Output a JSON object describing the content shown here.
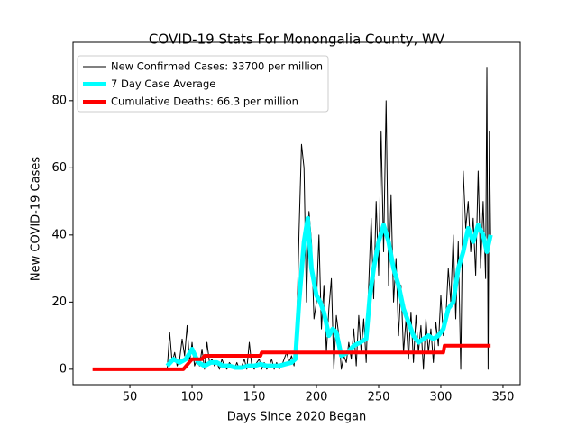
{
  "chart_data": {
    "type": "line",
    "title": "COVID-19 Stats For Monongalia County, WV",
    "x_label": "Days Since 2020 Began",
    "y_label": "New COVID-19 Cases",
    "xlim": [
      4.3,
      363.8
    ],
    "ylim": [
      -4.6,
      97.4
    ],
    "xticks": [
      50,
      100,
      150,
      200,
      250,
      300,
      350
    ],
    "yticks": [
      0,
      20,
      40,
      60,
      80
    ],
    "legend": "upper left",
    "series": [
      {
        "name": "New Confirmed Cases: 33700 per million",
        "color": "#000000",
        "width": 1,
        "x": [
          80,
          82,
          84,
          86,
          88,
          90,
          92,
          94,
          96,
          98,
          100,
          102,
          104,
          106,
          108,
          110,
          112,
          114,
          116,
          118,
          120,
          122,
          124,
          126,
          128,
          130,
          132,
          134,
          136,
          138,
          140,
          142,
          144,
          146,
          148,
          150,
          152,
          154,
          156,
          158,
          160,
          162,
          164,
          166,
          168,
          170,
          172,
          174,
          176,
          178,
          180,
          182,
          184,
          186,
          188,
          190,
          192,
          194,
          196,
          198,
          200,
          202,
          204,
          206,
          208,
          210,
          212,
          214,
          216,
          218,
          220,
          222,
          224,
          226,
          228,
          230,
          232,
          234,
          236,
          238,
          240,
          242,
          244,
          246,
          248,
          250,
          252,
          254,
          256,
          258,
          260,
          262,
          264,
          266,
          268,
          270,
          272,
          274,
          276,
          278,
          280,
          282,
          284,
          286,
          288,
          290,
          292,
          294,
          296,
          298,
          300,
          302,
          304,
          306,
          308,
          310,
          312,
          314,
          316,
          318,
          320,
          322,
          324,
          326,
          328,
          330,
          332,
          334,
          336,
          337,
          338,
          339,
          340
        ],
        "values": [
          0,
          11,
          2,
          5,
          1,
          3,
          9,
          4,
          13,
          2,
          8,
          1,
          3,
          1,
          6,
          0,
          8,
          2,
          3,
          1,
          2,
          0,
          3,
          1,
          0,
          2,
          1,
          0,
          2,
          0,
          1,
          3,
          0,
          8,
          1,
          0,
          2,
          3,
          0,
          2,
          0,
          1,
          3,
          0,
          2,
          0,
          1,
          3,
          5,
          2,
          4,
          1,
          10,
          41,
          67,
          60,
          20,
          47,
          38,
          15,
          20,
          40,
          12,
          25,
          5,
          18,
          27,
          0,
          16,
          10,
          0,
          4,
          2,
          8,
          3,
          12,
          1,
          16,
          5,
          15,
          2,
          25,
          45,
          21,
          50,
          28,
          71,
          35,
          80,
          25,
          52,
          20,
          33,
          10,
          25,
          5,
          15,
          3,
          17,
          2,
          16,
          5,
          13,
          0,
          15,
          5,
          12,
          2,
          14,
          7,
          22,
          10,
          15,
          30,
          20,
          40,
          15,
          38,
          0,
          59,
          42,
          50,
          35,
          45,
          28,
          59,
          30,
          50,
          27,
          90,
          0,
          71,
          40
        ]
      },
      {
        "name": "7 Day Case Average",
        "color": "#00ffff",
        "width": 5,
        "x": [
          80,
          85,
          90,
          95,
          100,
          105,
          110,
          115,
          120,
          125,
          130,
          135,
          140,
          145,
          150,
          155,
          160,
          165,
          170,
          175,
          180,
          183,
          186,
          190,
          193,
          196,
          200,
          203,
          206,
          210,
          213,
          216,
          220,
          225,
          230,
          235,
          240,
          243,
          246,
          250,
          254,
          258,
          262,
          266,
          270,
          274,
          278,
          282,
          286,
          290,
          294,
          298,
          302,
          306,
          310,
          314,
          318,
          322,
          326,
          330,
          334,
          337,
          340
        ],
        "values": [
          1,
          3,
          2,
          3,
          6,
          2,
          1,
          2,
          2,
          1,
          1,
          0.5,
          0.5,
          1,
          1,
          1.5,
          1,
          1,
          1,
          1.5,
          2,
          3,
          20,
          38,
          45,
          30,
          22,
          20,
          17,
          10,
          12,
          11,
          4,
          5,
          7,
          8,
          9,
          22,
          30,
          38,
          43,
          38,
          30,
          25,
          18,
          14,
          10,
          8,
          9,
          10,
          9,
          10,
          12,
          18,
          20,
          30,
          35,
          42,
          38,
          43,
          40,
          35,
          40
        ]
      },
      {
        "name": "Cumulative Deaths: 66.3 per million",
        "color": "#ff0000",
        "width": 4,
        "x": [
          20,
          93,
          100,
          108,
          110,
          155,
          156,
          302,
          303,
          340
        ],
        "values": [
          0,
          0,
          3,
          3,
          4,
          4,
          5,
          5,
          7,
          7
        ]
      }
    ]
  }
}
